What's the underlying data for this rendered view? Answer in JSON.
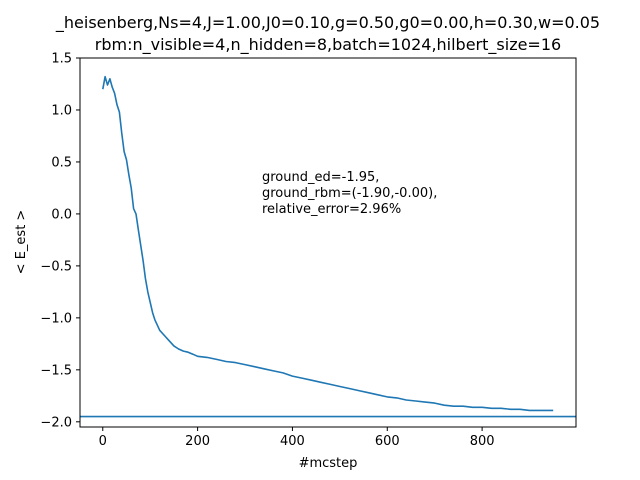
{
  "chart_data": {
    "type": "line",
    "title_lines": [
      "_heisenberg,Ns=4,J=1.00,J0=0.10,g=0.50,g0=0.00,h=0.30,w=0.05",
      "rbm:n_visible=4,n_hidden=8,batch=1024,hilbert_size=16"
    ],
    "xlabel": "#mcstep",
    "ylabel": "< E_est >",
    "xlim": [
      -48,
      998
    ],
    "ylim": [
      -2.05,
      1.5
    ],
    "x_ticks": [
      0,
      200,
      400,
      600,
      800
    ],
    "x_tick_labels": [
      "0",
      "200",
      "400",
      "600",
      "800"
    ],
    "y_ticks": [
      1.5,
      1.0,
      0.5,
      0.0,
      -0.5,
      -1.0,
      -1.5,
      -2.0
    ],
    "y_tick_labels": [
      "1.5",
      "1.0",
      "0.5",
      "0.0",
      "−0.5",
      "−1.0",
      "−1.5",
      "−2.0"
    ],
    "grid": false,
    "annotation_lines": [
      "ground_ed=-1.95,",
      "ground_rbm=(-1.90,-0.00),",
      "relative_error=2.96%"
    ],
    "reference_line": {
      "y": -1.95
    },
    "series": [
      {
        "color": "#1f77b4",
        "x": [
          0,
          5,
          10,
          15,
          20,
          25,
          30,
          35,
          40,
          45,
          50,
          55,
          60,
          65,
          70,
          75,
          80,
          85,
          90,
          95,
          100,
          105,
          110,
          115,
          120,
          130,
          140,
          150,
          160,
          170,
          180,
          190,
          200,
          220,
          240,
          260,
          280,
          300,
          320,
          340,
          360,
          380,
          400,
          420,
          440,
          460,
          480,
          500,
          520,
          540,
          560,
          580,
          600,
          620,
          640,
          660,
          680,
          700,
          720,
          740,
          760,
          780,
          800,
          820,
          840,
          860,
          880,
          900,
          920,
          950
        ],
        "y": [
          1.2,
          1.32,
          1.24,
          1.3,
          1.22,
          1.16,
          1.05,
          0.98,
          0.78,
          0.6,
          0.52,
          0.38,
          0.25,
          0.05,
          0.0,
          -0.15,
          -0.3,
          -0.45,
          -0.62,
          -0.75,
          -0.85,
          -0.95,
          -1.02,
          -1.07,
          -1.12,
          -1.17,
          -1.22,
          -1.27,
          -1.3,
          -1.32,
          -1.33,
          -1.35,
          -1.37,
          -1.38,
          -1.4,
          -1.42,
          -1.43,
          -1.45,
          -1.47,
          -1.49,
          -1.51,
          -1.53,
          -1.56,
          -1.58,
          -1.6,
          -1.62,
          -1.64,
          -1.66,
          -1.68,
          -1.7,
          -1.72,
          -1.74,
          -1.76,
          -1.77,
          -1.79,
          -1.8,
          -1.81,
          -1.82,
          -1.84,
          -1.85,
          -1.85,
          -1.86,
          -1.86,
          -1.87,
          -1.87,
          -1.88,
          -1.88,
          -1.89,
          -1.89,
          -1.89
        ]
      }
    ]
  }
}
